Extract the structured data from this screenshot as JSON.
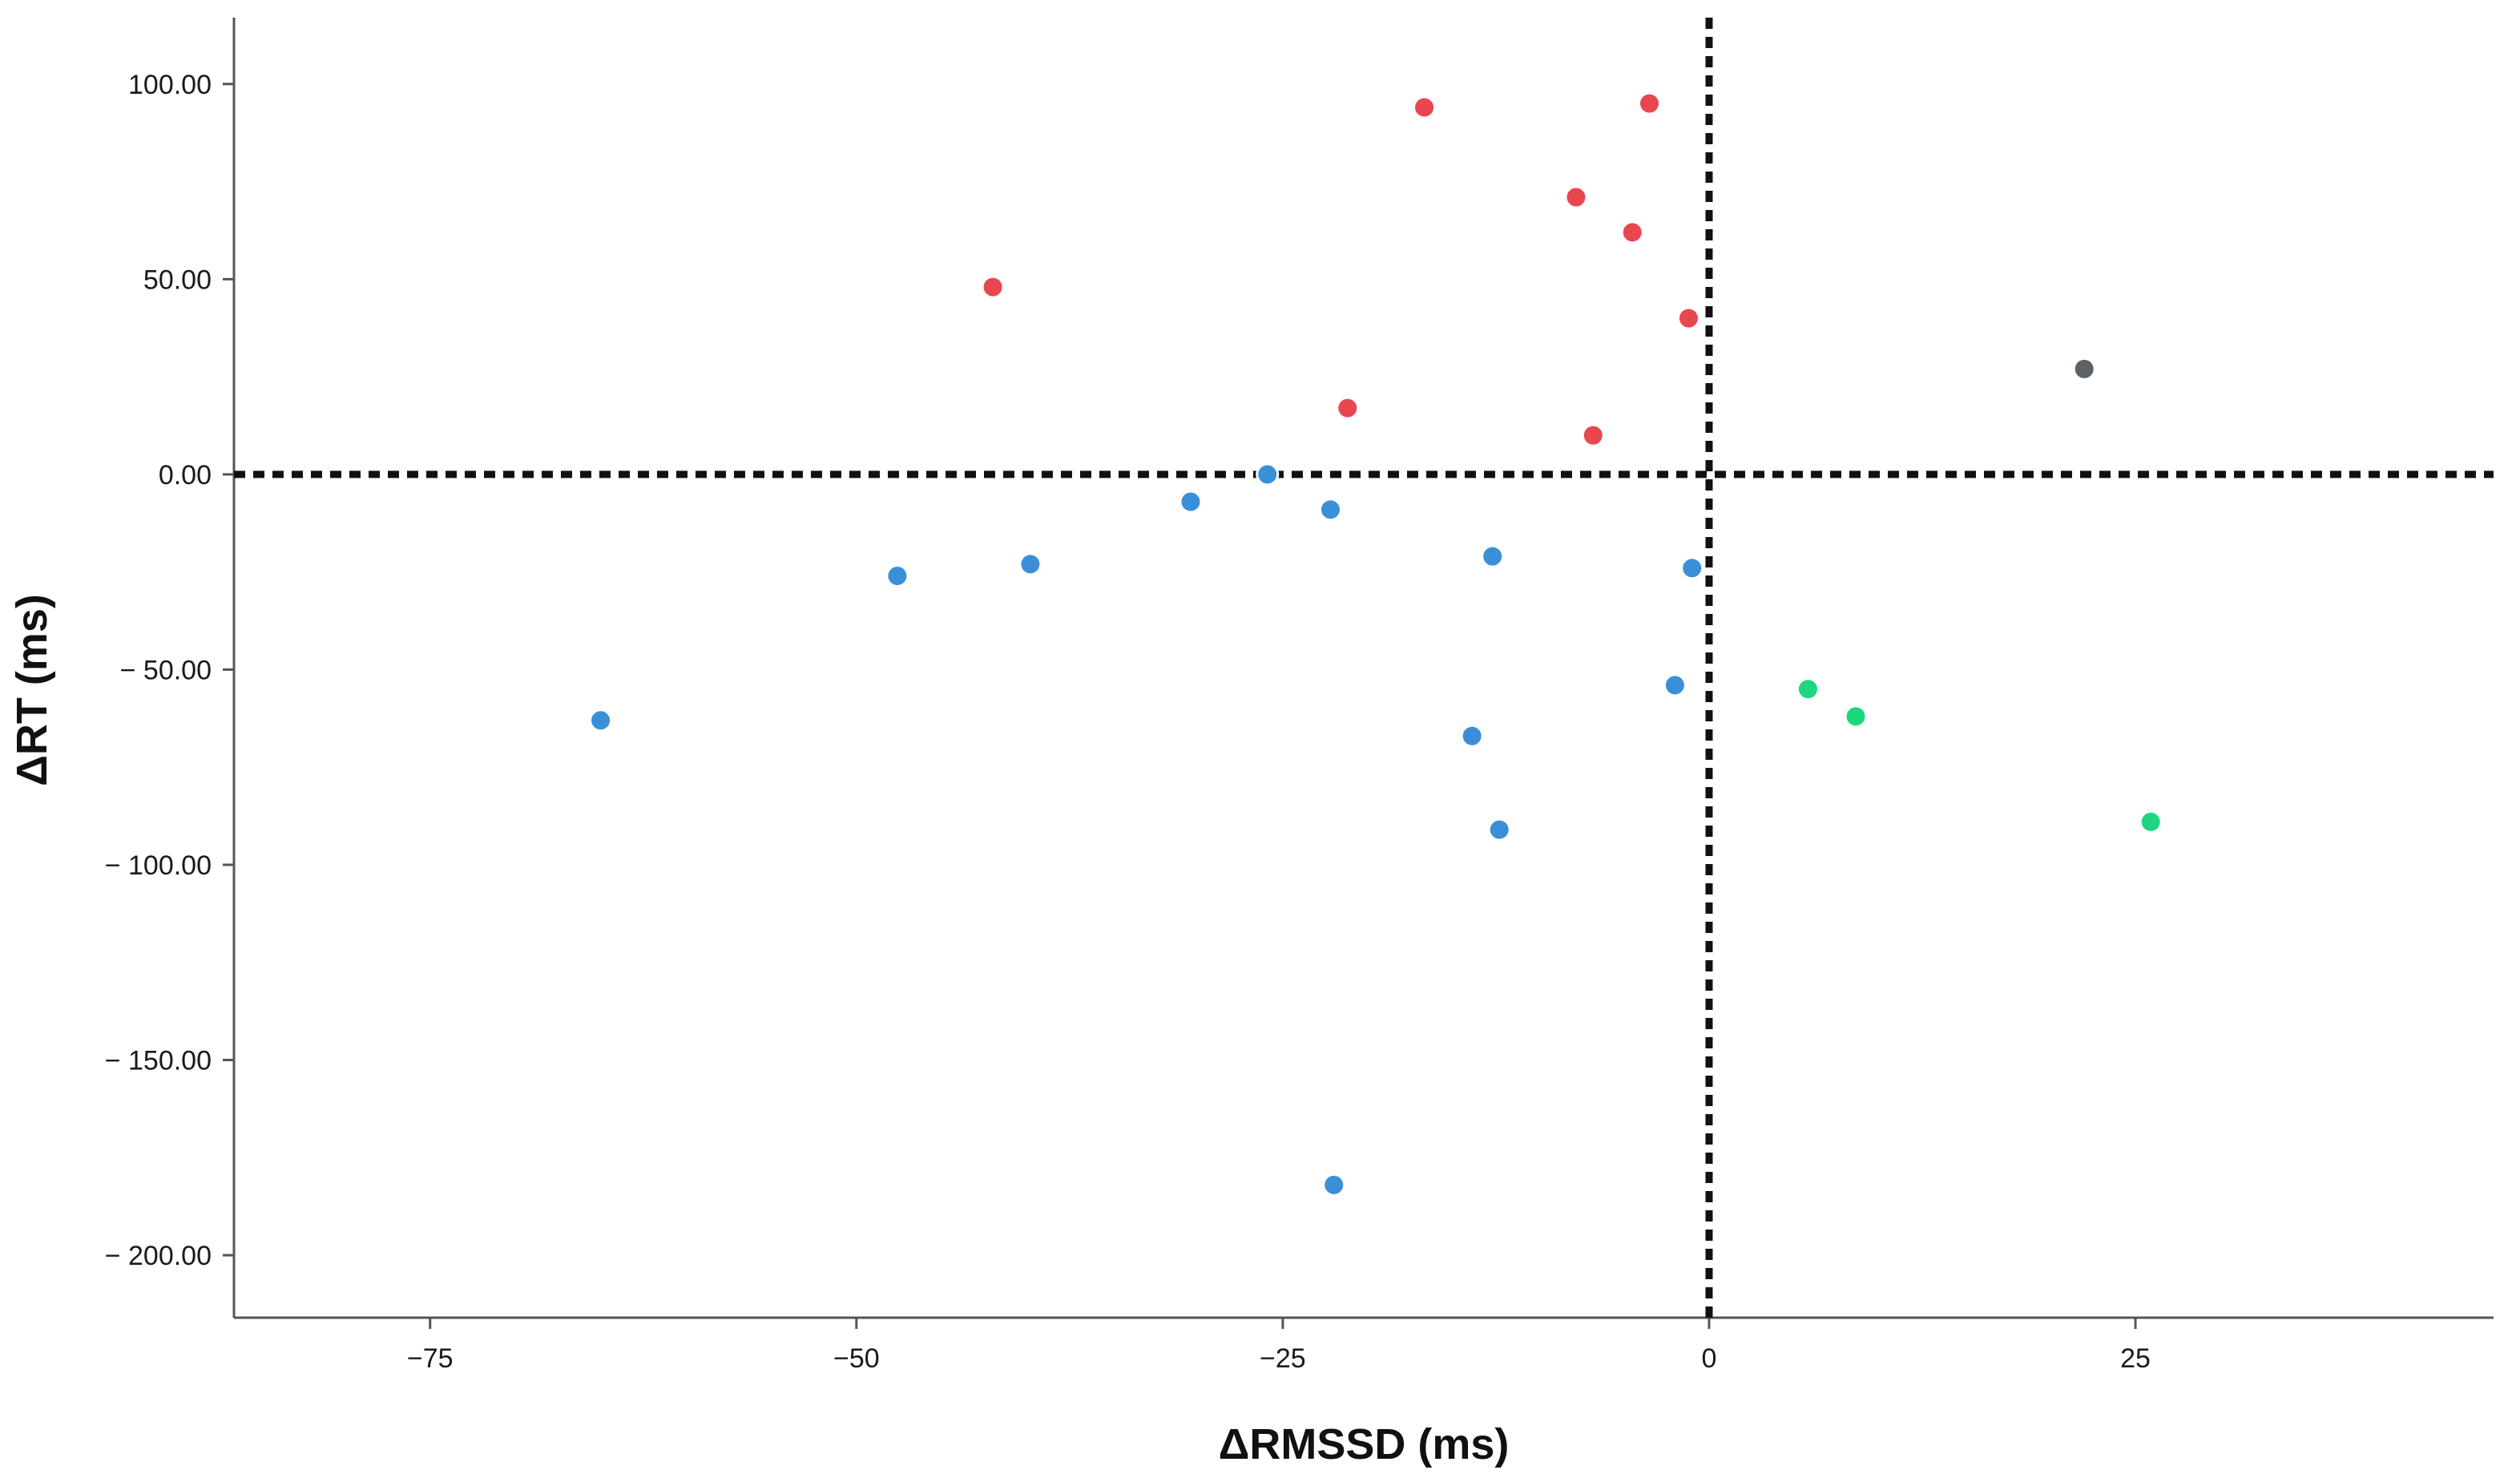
{
  "chart_data": {
    "type": "scatter",
    "title": "",
    "xlabel": "ΔRMSSD (ms)",
    "ylabel": "ΔRT (ms)",
    "xlim": [
      -86.5,
      46
    ],
    "ylim": [
      -216,
      117
    ],
    "x_ticks": [
      -75,
      -50,
      -25,
      0,
      25
    ],
    "x_tick_labels": [
      "−75",
      "−50",
      "−25",
      "0",
      "25"
    ],
    "y_ticks": [
      100,
      50,
      0,
      -50,
      -100,
      -150,
      -200
    ],
    "y_tick_labels": [
      "100.00",
      "50.00",
      "0.00",
      "− 50.00",
      "− 100.00",
      "− 150.00",
      "− 200.00"
    ],
    "grid": false,
    "reference_lines": [
      {
        "orientation": "horizontal",
        "value": 0,
        "style": "dotted"
      },
      {
        "orientation": "vertical",
        "value": 0,
        "style": "dotted"
      }
    ],
    "series": [
      {
        "color": "#e8474f",
        "points": [
          {
            "x": -42.0,
            "y": 48
          },
          {
            "x": -16.7,
            "y": 94
          },
          {
            "x": -3.5,
            "y": 95
          },
          {
            "x": -7.8,
            "y": 71
          },
          {
            "x": -4.5,
            "y": 62
          },
          {
            "x": -1.2,
            "y": 40
          },
          {
            "x": -21.2,
            "y": 17
          },
          {
            "x": -6.8,
            "y": 10
          }
        ]
      },
      {
        "color": "#3b8fd8",
        "points": [
          {
            "x": -25.9,
            "y": 0
          },
          {
            "x": -30.4,
            "y": -7
          },
          {
            "x": -22.2,
            "y": -9
          },
          {
            "x": -47.6,
            "y": -26
          },
          {
            "x": -39.8,
            "y": -23
          },
          {
            "x": -12.7,
            "y": -21
          },
          {
            "x": -1.0,
            "y": -24
          },
          {
            "x": -2.0,
            "y": -54
          },
          {
            "x": -65.0,
            "y": -63
          },
          {
            "x": -13.9,
            "y": -67
          },
          {
            "x": -12.3,
            "y": -91
          },
          {
            "x": -22.0,
            "y": -182
          }
        ]
      },
      {
        "color": "#1ed67e",
        "points": [
          {
            "x": 5.8,
            "y": -55
          },
          {
            "x": 8.6,
            "y": -62
          },
          {
            "x": 25.9,
            "y": -89
          }
        ]
      },
      {
        "color": "#5c6166",
        "points": [
          {
            "x": 22.0,
            "y": 27
          }
        ]
      }
    ]
  }
}
